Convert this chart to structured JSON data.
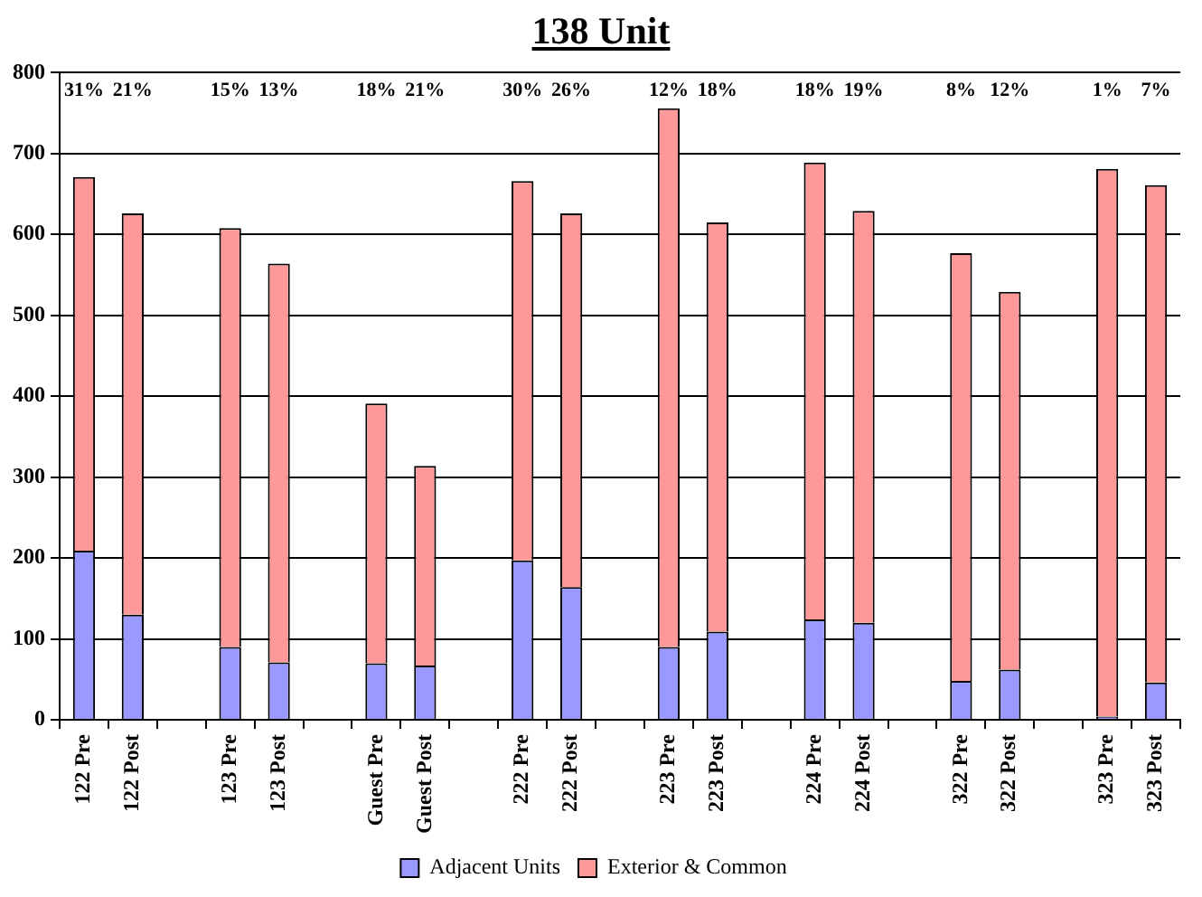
{
  "chart_data": {
    "type": "bar",
    "title": "138 Unit",
    "stacked": true,
    "categories": [
      "122 Pre",
      "122 Post",
      null,
      "123 Pre",
      "123 Post",
      null,
      "Guest Pre",
      "Guest Post",
      null,
      "222 Pre",
      "222 Post",
      null,
      "223 Pre",
      "223 Post",
      null,
      "224 Pre",
      "224 Post",
      null,
      "322 Pre",
      "322 Post",
      null,
      "323 Pre",
      "323 Post"
    ],
    "series": [
      {
        "name": "Adjacent Units",
        "color": "#9999ff",
        "values": [
          209,
          130,
          null,
          90,
          71,
          null,
          70,
          67,
          null,
          197,
          164,
          null,
          90,
          109,
          null,
          124,
          120,
          null,
          48,
          62,
          null,
          4,
          46
        ]
      },
      {
        "name": "Exterior & Common",
        "color": "#ff9999",
        "values": [
          462,
          496,
          null,
          518,
          493,
          null,
          321,
          247,
          null,
          469,
          462,
          null,
          666,
          506,
          null,
          565,
          509,
          null,
          529,
          467,
          null,
          677,
          615
        ]
      }
    ],
    "ylim": [
      0,
      800
    ],
    "yticks": [
      0,
      100,
      200,
      300,
      400,
      500,
      600,
      700,
      800
    ],
    "grid": "y",
    "legend": "bottom",
    "annotations": [
      "31%",
      "21%",
      "15%",
      "13%",
      "18%",
      "21%",
      "30%",
      "26%",
      "12%",
      "18%",
      "18%",
      "19%",
      "8%",
      "12%",
      "1%",
      "7%"
    ]
  }
}
